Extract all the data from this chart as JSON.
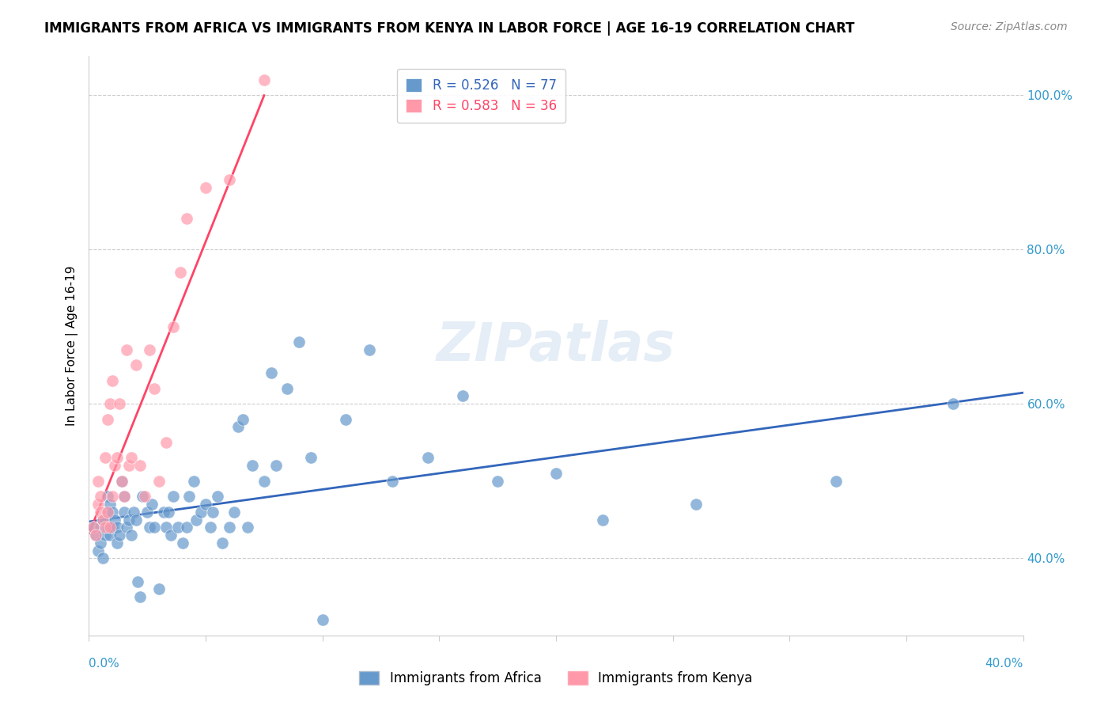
{
  "title": "IMMIGRANTS FROM AFRICA VS IMMIGRANTS FROM KENYA IN LABOR FORCE | AGE 16-19 CORRELATION CHART",
  "source": "Source: ZipAtlas.com",
  "ylabel": "In Labor Force | Age 16-19",
  "ylabel_ticks": [
    "40.0%",
    "60.0%",
    "80.0%",
    "100.0%"
  ],
  "ylabel_tick_vals": [
    0.4,
    0.6,
    0.8,
    1.0
  ],
  "xlim": [
    0.0,
    0.4
  ],
  "ylim": [
    0.3,
    1.05
  ],
  "legend_blue_R": 0.526,
  "legend_blue_N": 77,
  "legend_pink_R": 0.583,
  "legend_pink_N": 36,
  "color_blue": "#6699CC",
  "color_pink": "#FF99AA",
  "color_blue_line": "#3366BB",
  "color_pink_line": "#FF4466",
  "watermark": "ZIPatlas",
  "watermark_color": "#CCDDEE",
  "africa_x": [
    0.002,
    0.003,
    0.004,
    0.005,
    0.005,
    0.006,
    0.006,
    0.007,
    0.007,
    0.008,
    0.008,
    0.008,
    0.009,
    0.009,
    0.01,
    0.01,
    0.011,
    0.012,
    0.012,
    0.013,
    0.014,
    0.015,
    0.015,
    0.016,
    0.017,
    0.018,
    0.019,
    0.02,
    0.021,
    0.022,
    0.023,
    0.025,
    0.026,
    0.027,
    0.028,
    0.03,
    0.032,
    0.033,
    0.034,
    0.035,
    0.036,
    0.038,
    0.04,
    0.042,
    0.043,
    0.045,
    0.046,
    0.048,
    0.05,
    0.052,
    0.053,
    0.055,
    0.057,
    0.06,
    0.062,
    0.064,
    0.066,
    0.068,
    0.07,
    0.075,
    0.078,
    0.08,
    0.085,
    0.09,
    0.095,
    0.1,
    0.11,
    0.12,
    0.13,
    0.145,
    0.16,
    0.175,
    0.2,
    0.22,
    0.26,
    0.32,
    0.37
  ],
  "africa_y": [
    0.44,
    0.43,
    0.41,
    0.42,
    0.44,
    0.45,
    0.4,
    0.43,
    0.45,
    0.44,
    0.46,
    0.48,
    0.43,
    0.47,
    0.44,
    0.46,
    0.45,
    0.42,
    0.44,
    0.43,
    0.5,
    0.46,
    0.48,
    0.44,
    0.45,
    0.43,
    0.46,
    0.45,
    0.37,
    0.35,
    0.48,
    0.46,
    0.44,
    0.47,
    0.44,
    0.36,
    0.46,
    0.44,
    0.46,
    0.43,
    0.48,
    0.44,
    0.42,
    0.44,
    0.48,
    0.5,
    0.45,
    0.46,
    0.47,
    0.44,
    0.46,
    0.48,
    0.42,
    0.44,
    0.46,
    0.57,
    0.58,
    0.44,
    0.52,
    0.5,
    0.64,
    0.52,
    0.62,
    0.68,
    0.53,
    0.32,
    0.58,
    0.67,
    0.5,
    0.53,
    0.61,
    0.5,
    0.51,
    0.45,
    0.47,
    0.5,
    0.6
  ],
  "kenya_x": [
    0.002,
    0.003,
    0.004,
    0.004,
    0.005,
    0.005,
    0.006,
    0.007,
    0.007,
    0.008,
    0.008,
    0.009,
    0.009,
    0.01,
    0.01,
    0.011,
    0.012,
    0.013,
    0.014,
    0.015,
    0.016,
    0.017,
    0.018,
    0.02,
    0.022,
    0.024,
    0.026,
    0.028,
    0.03,
    0.033,
    0.036,
    0.039,
    0.042,
    0.05,
    0.06,
    0.075
  ],
  "kenya_y": [
    0.44,
    0.43,
    0.47,
    0.5,
    0.46,
    0.48,
    0.45,
    0.44,
    0.53,
    0.46,
    0.58,
    0.44,
    0.6,
    0.63,
    0.48,
    0.52,
    0.53,
    0.6,
    0.5,
    0.48,
    0.67,
    0.52,
    0.53,
    0.65,
    0.52,
    0.48,
    0.67,
    0.62,
    0.5,
    0.55,
    0.7,
    0.77,
    0.84,
    0.88,
    0.89,
    1.02
  ]
}
